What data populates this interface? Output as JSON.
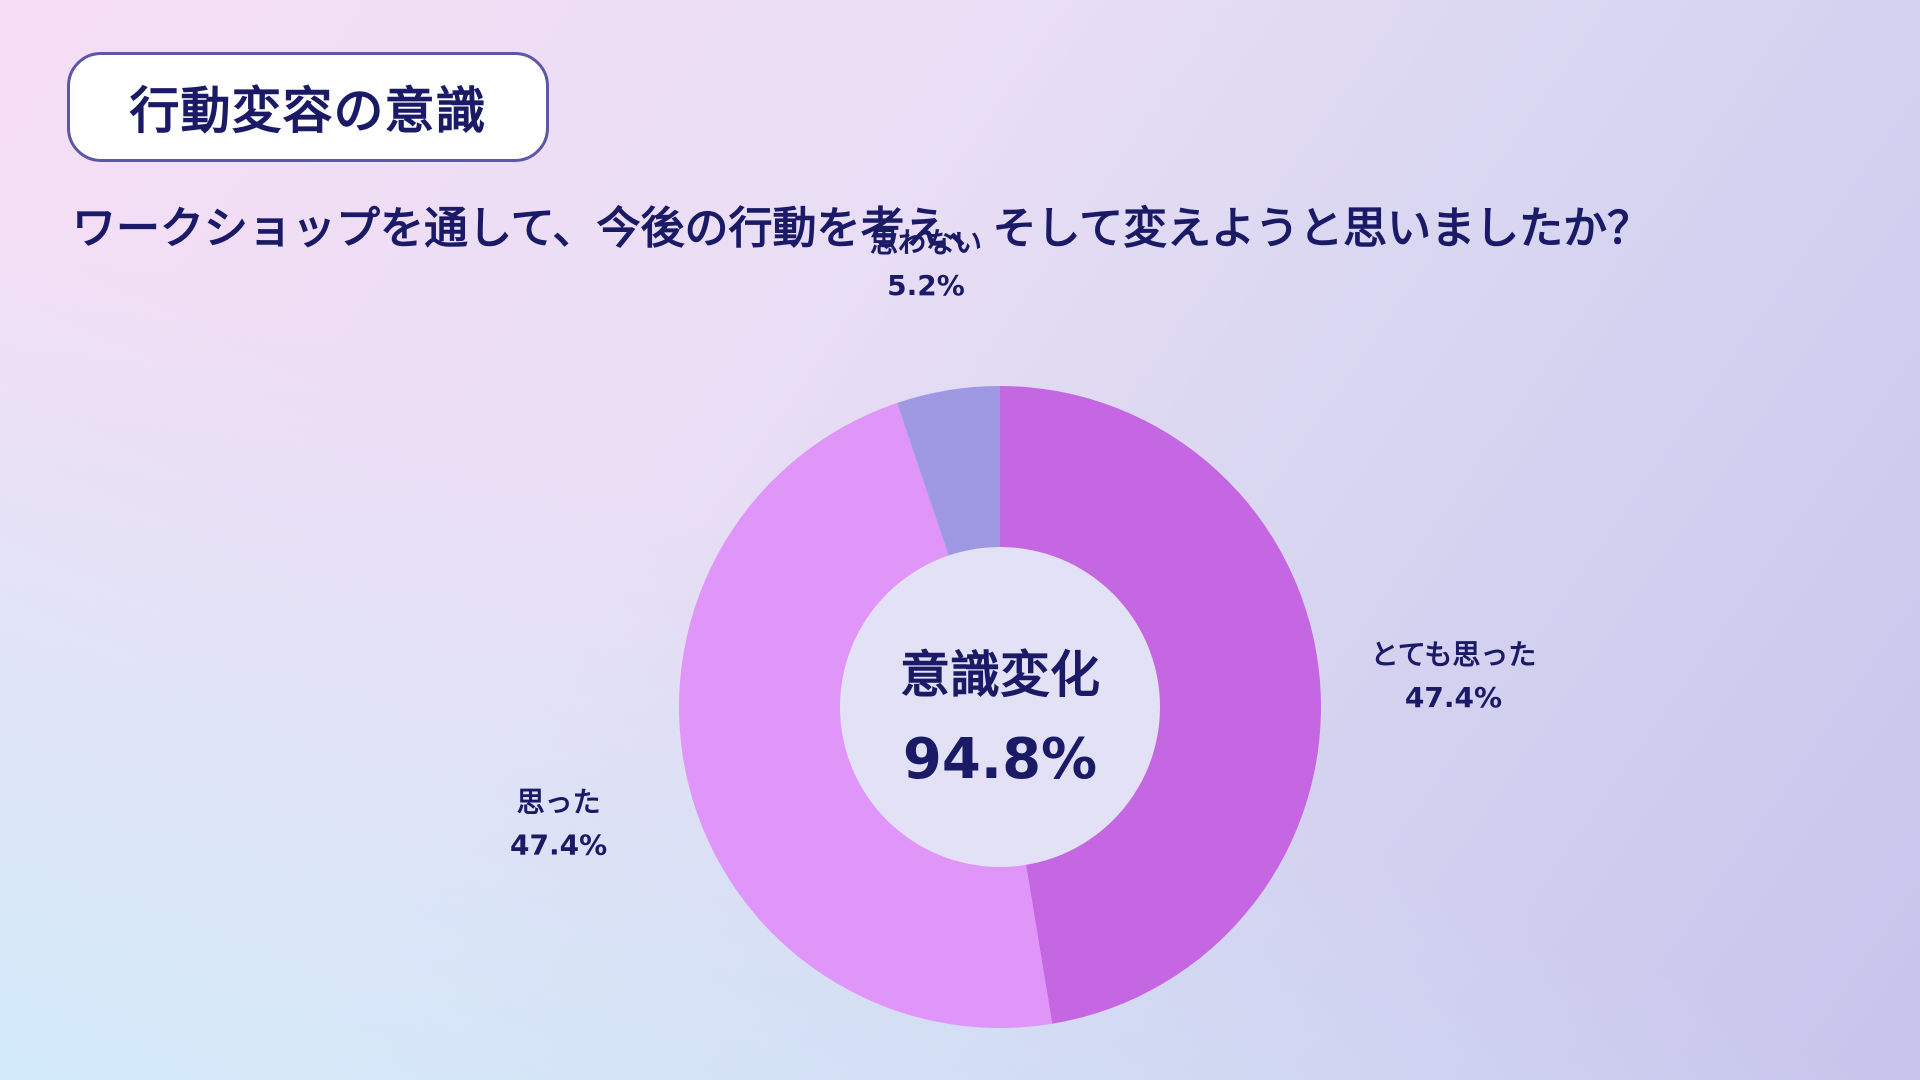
{
  "header": {
    "title": "行動変容の意識",
    "question": "ワークショップを通して、今後の行動を考え、そして変えようと思いましたか？"
  },
  "chart_data": {
    "type": "pie",
    "donut": true,
    "title": "",
    "slices": [
      {
        "label": "とても思った",
        "value": 47.4,
        "value_label": "47.4%",
        "color": "#c566e3"
      },
      {
        "label": "思った",
        "value": 47.4,
        "value_label": "47.4%",
        "color": "#e096f8"
      },
      {
        "label": "思わない",
        "value": 5.2,
        "value_label": "5.2%",
        "color": "#9e99e2"
      }
    ],
    "center": {
      "label": "意識変化",
      "value": "94.8%"
    },
    "colors": {
      "center_fill": "#e3e1f5",
      "text": "#1a1a66"
    }
  }
}
